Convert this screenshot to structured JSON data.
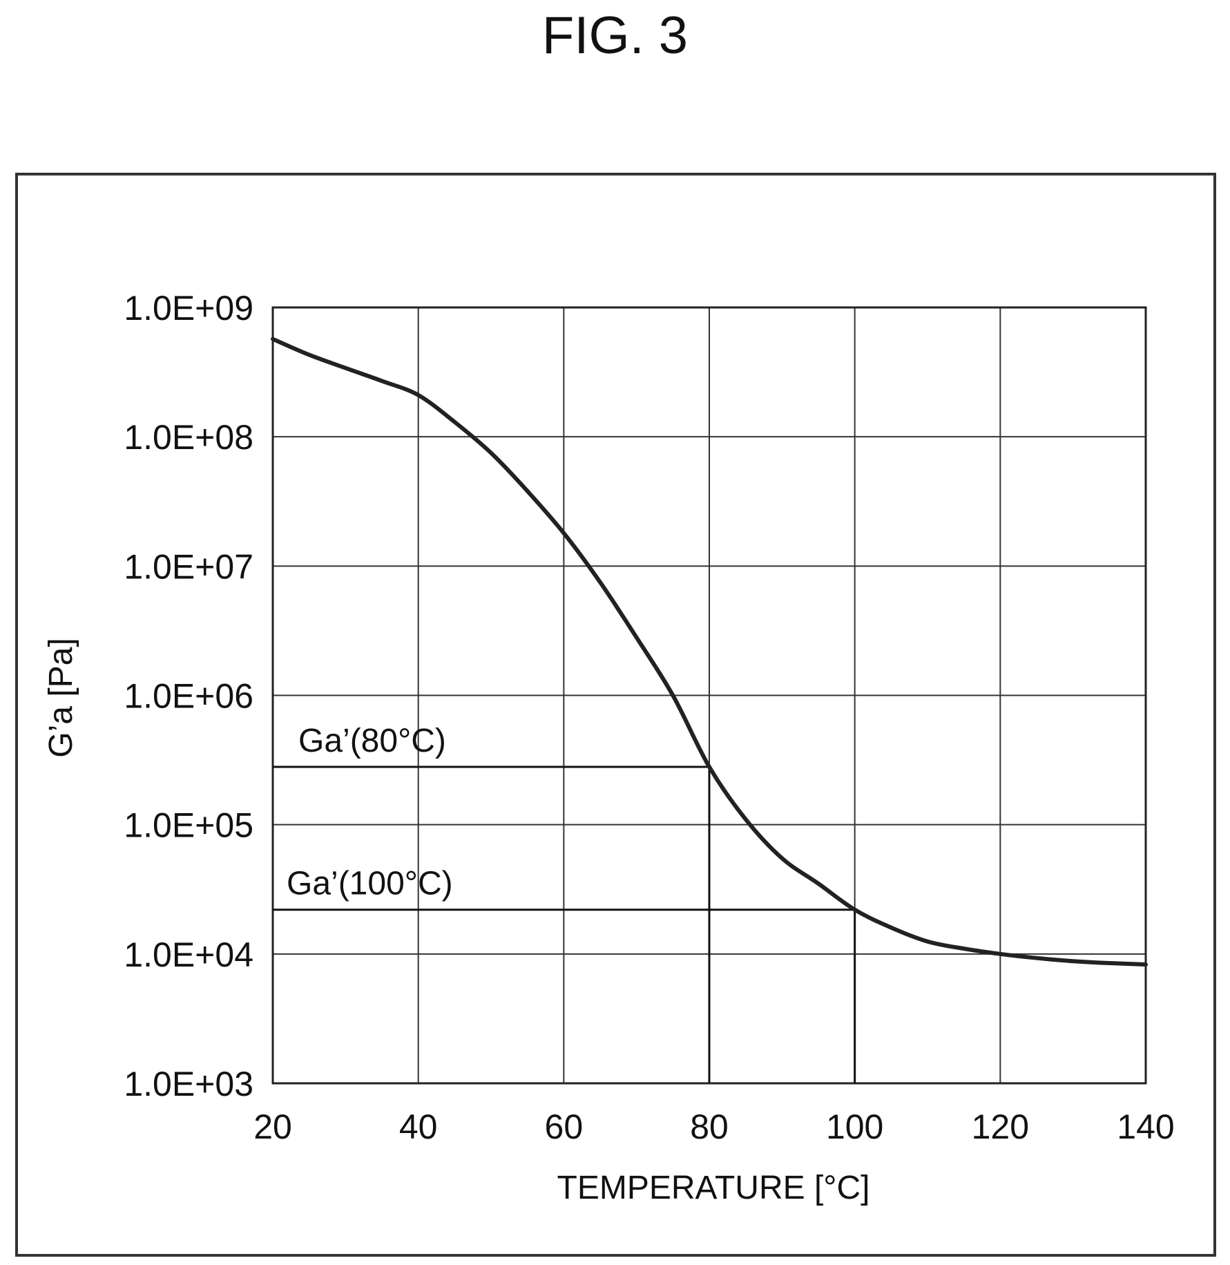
{
  "figure": {
    "title": "FIG. 3"
  },
  "chart_data": {
    "type": "line",
    "title": "FIG. 3",
    "xlabel": "TEMPERATURE [°C]",
    "ylabel": "G’a [Pa]",
    "xlim": [
      20,
      140
    ],
    "ylim": [
      1000,
      1000000000
    ],
    "yscale": "log",
    "grid": true,
    "x_ticks": [
      20,
      40,
      60,
      80,
      100,
      120,
      140
    ],
    "x_tick_labels": [
      "20",
      "40",
      "60",
      "80",
      "100",
      "120",
      "140"
    ],
    "y_ticks": [
      1000,
      10000,
      100000,
      1000000,
      10000000,
      100000000,
      1000000000
    ],
    "y_tick_labels": [
      "1.0E+03",
      "1.0E+04",
      "1.0E+05",
      "1.0E+06",
      "1.0E+07",
      "1.0E+08",
      "1.0E+09"
    ],
    "series": [
      {
        "color": "#222222",
        "x": [
          20,
          25,
          30,
          35,
          40,
          45,
          50,
          55,
          60,
          65,
          70,
          75,
          80,
          85,
          90,
          95,
          100,
          105,
          110,
          115,
          120,
          125,
          130,
          135,
          140
        ],
        "y": [
          570000000,
          430000000,
          340000000,
          270000000,
          210000000,
          130000000,
          75000000,
          38000000,
          18000000,
          7500000,
          2800000,
          1000000,
          280000,
          110000,
          55000,
          35000,
          22000,
          16000,
          12500,
          11000,
          10000,
          9300,
          8800,
          8500,
          8300
        ]
      }
    ],
    "annotations": [
      {
        "label": "Ga’(80°C)",
        "x": 80,
        "y": 280000
      },
      {
        "label": "Ga’(100°C)",
        "x": 100,
        "y": 22000
      }
    ]
  }
}
